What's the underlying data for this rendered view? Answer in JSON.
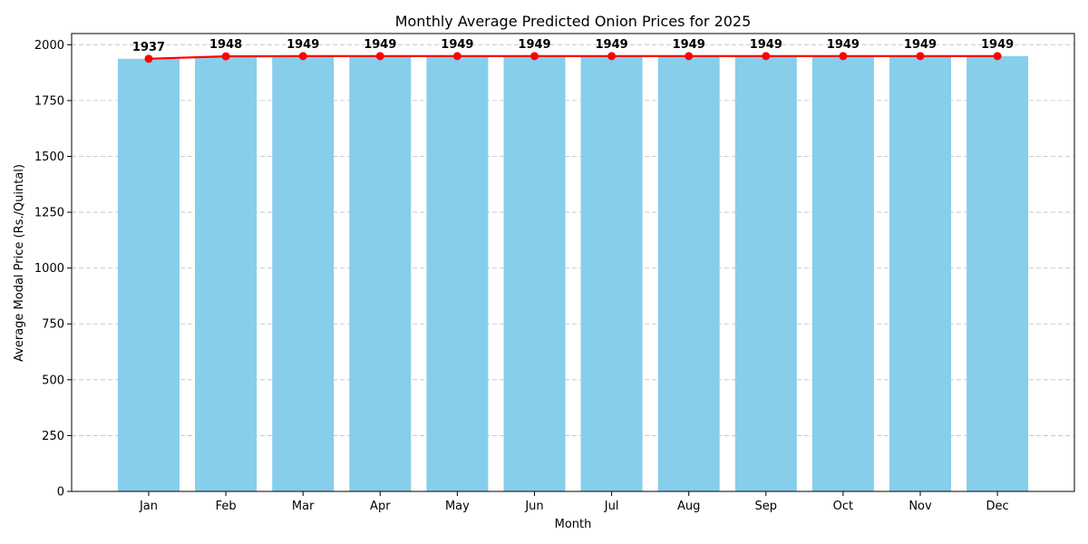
{
  "chart_data": {
    "type": "bar",
    "title": "Monthly Average Predicted Onion Prices for 2025",
    "xlabel": "Month",
    "ylabel": "Average Modal Price (Rs./Quintal)",
    "categories": [
      "Jan",
      "Feb",
      "Mar",
      "Apr",
      "May",
      "Jun",
      "Jul",
      "Aug",
      "Sep",
      "Oct",
      "Nov",
      "Dec"
    ],
    "values": [
      1937,
      1948,
      1949,
      1949,
      1949,
      1949,
      1949,
      1949,
      1949,
      1949,
      1949,
      1949
    ],
    "data_labels": [
      "1937",
      "1948",
      "1949",
      "1949",
      "1949",
      "1949",
      "1949",
      "1949",
      "1949",
      "1949",
      "1949",
      "1949"
    ],
    "overlay_line": "same values drawn as red line with circular markers",
    "ylim": [
      0,
      2050
    ],
    "yticks": [
      0,
      250,
      500,
      750,
      1000,
      1250,
      1500,
      1750,
      2000
    ],
    "grid": "y-dashed",
    "colors": {
      "bar": "#87ceeb",
      "line": "#ff0000",
      "grid": "#c0c0c0"
    }
  }
}
